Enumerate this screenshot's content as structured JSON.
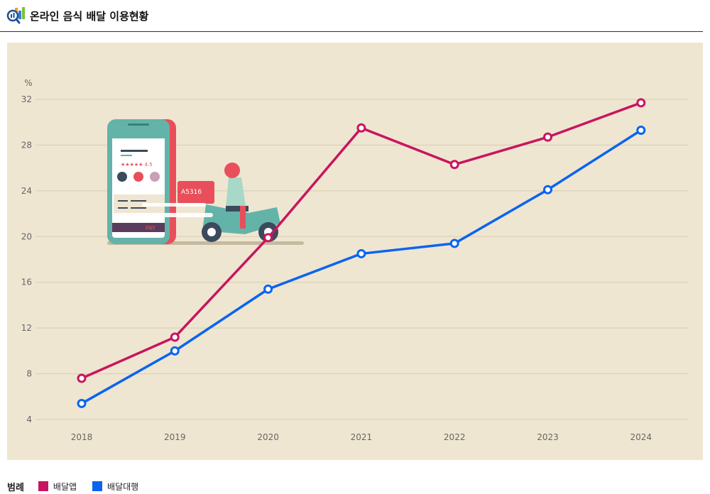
{
  "header": {
    "title": "온라인 음식 배달 이용현황",
    "icon": "chart-magnifier-icon"
  },
  "illustration": {
    "icon": "delivery-scooter-phone-illustration",
    "rating_text": "★★★★★ 4.5",
    "plate_text": "A5316",
    "button_text": "PAY"
  },
  "chart_data": {
    "type": "line",
    "yunit": "%",
    "ylim": [
      4,
      32
    ],
    "yticks": [
      4,
      8,
      12,
      16,
      20,
      24,
      28,
      32
    ],
    "categories": [
      "2018",
      "2019",
      "2020",
      "2021",
      "2022",
      "2023",
      "2024"
    ],
    "grid": true,
    "series": [
      {
        "name": "배달앱",
        "color": "#c8155f",
        "values": [
          7.6,
          11.2,
          19.9,
          29.5,
          26.3,
          28.7,
          31.7
        ]
      },
      {
        "name": "배달대행",
        "color": "#0a64f0",
        "values": [
          5.4,
          10.0,
          15.4,
          18.5,
          19.4,
          24.1,
          29.3
        ]
      }
    ]
  },
  "legend": {
    "title": "범례",
    "items": [
      {
        "label": "배달앱",
        "color": "#c8155f"
      },
      {
        "label": "배달대행",
        "color": "#0a64f0"
      }
    ]
  }
}
